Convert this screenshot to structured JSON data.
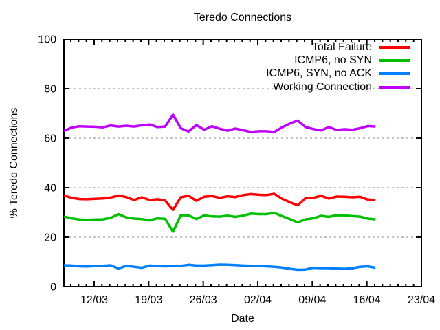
{
  "title": "Teredo Connections",
  "axes": {
    "x_label": "Date",
    "y_label": "% Teredo Connections",
    "x_tick_labels": [
      "12/03",
      "19/03",
      "26/03",
      "02/04",
      "09/04",
      "16/04",
      "23/04"
    ],
    "y_tick_labels": [
      "0",
      "20",
      "40",
      "60",
      "80",
      "100"
    ]
  },
  "chart_data": {
    "type": "line",
    "title": "Teredo Connections",
    "xlabel": "Date",
    "ylabel": "% Teredo Connections",
    "ylim": [
      0,
      100
    ],
    "y_ticks": [
      0,
      20,
      40,
      60,
      80,
      100
    ],
    "x_tick_labels": [
      "12/03",
      "19/03",
      "26/03",
      "02/04",
      "09/04",
      "16/04",
      "23/04"
    ],
    "grid": "horizontal dashed gray lines at 20, 40, 60, 80; minor daily ticks on x axis; ticks mirrored on top/right border",
    "legend_position": "top-right inside, no box, labels right-aligned with line samples",
    "x": [
      "08/03",
      "09/03",
      "10/03",
      "11/03",
      "12/03",
      "13/03",
      "14/03",
      "15/03",
      "16/03",
      "17/03",
      "18/03",
      "19/03",
      "20/03",
      "21/03",
      "22/03",
      "23/03",
      "24/03",
      "25/03",
      "26/03",
      "27/03",
      "28/03",
      "29/03",
      "30/03",
      "31/03",
      "01/04",
      "02/04",
      "03/04",
      "04/04",
      "05/04",
      "06/04",
      "07/04",
      "08/04",
      "09/04",
      "10/04",
      "11/04",
      "12/04",
      "13/04",
      "14/04",
      "15/04",
      "16/04",
      "17/04"
    ],
    "series": [
      {
        "name": "Total Failure",
        "color": "#ff0000",
        "values": [
          36.8,
          35.9,
          35.4,
          35.3,
          35.5,
          35.6,
          36.0,
          36.8,
          36.2,
          35.0,
          36.1,
          35.0,
          35.3,
          34.8,
          31.0,
          36.1,
          36.7,
          34.7,
          36.3,
          36.6,
          35.9,
          36.5,
          36.2,
          37.0,
          37.4,
          37.1,
          37.0,
          37.5,
          35.5,
          34.1,
          32.9,
          35.7,
          35.9,
          36.7,
          35.6,
          36.4,
          36.3,
          36.1,
          36.3,
          35.2,
          35.0
        ]
      },
      {
        "name": "ICMP6, no SYN",
        "color": "#00c000",
        "values": [
          28.3,
          27.6,
          27.1,
          27.0,
          27.1,
          27.2,
          27.8,
          29.3,
          28.0,
          27.5,
          27.3,
          26.8,
          27.6,
          27.4,
          22.2,
          28.9,
          28.8,
          27.3,
          28.8,
          28.4,
          28.3,
          28.7,
          28.2,
          28.7,
          29.5,
          29.3,
          29.3,
          29.8,
          28.5,
          27.3,
          26.0,
          27.2,
          27.6,
          28.6,
          28.2,
          28.9,
          28.8,
          28.5,
          28.3,
          27.5,
          27.2
        ]
      },
      {
        "name": "ICMP6, SYN, no ACK",
        "color": "#0080ff",
        "values": [
          8.6,
          8.5,
          8.2,
          8.1,
          8.3,
          8.4,
          8.6,
          7.3,
          8.4,
          8.0,
          7.6,
          8.5,
          8.3,
          8.2,
          8.3,
          8.4,
          8.8,
          8.5,
          8.5,
          8.7,
          8.9,
          8.8,
          8.7,
          8.5,
          8.4,
          8.4,
          8.2,
          8.0,
          7.7,
          7.2,
          6.8,
          6.9,
          7.6,
          7.5,
          7.5,
          7.3,
          7.2,
          7.4,
          8.0,
          8.2,
          7.6
        ]
      },
      {
        "name": "Working Connection",
        "color": "#bf00ff",
        "values": [
          62.9,
          64.3,
          64.8,
          64.7,
          64.6,
          64.4,
          65.1,
          64.7,
          65.0,
          64.7,
          65.2,
          65.5,
          64.5,
          64.7,
          69.5,
          64.0,
          62.7,
          65.3,
          63.4,
          64.8,
          63.8,
          63.0,
          63.9,
          63.2,
          62.5,
          62.8,
          62.8,
          62.5,
          64.4,
          65.9,
          67.1,
          64.5,
          63.7,
          63.1,
          64.5,
          63.3,
          63.6,
          63.4,
          64.0,
          64.9,
          64.7
        ]
      }
    ]
  }
}
